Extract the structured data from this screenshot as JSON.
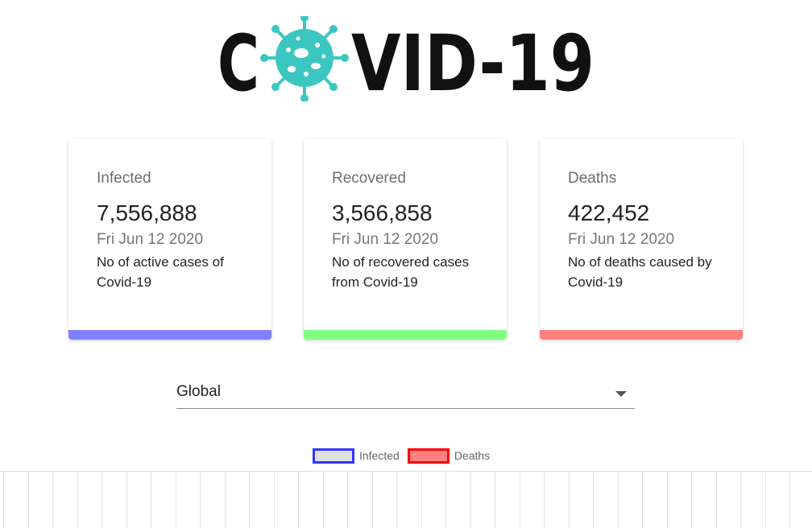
{
  "logo": {
    "text_left": "C",
    "text_right": "VID-19",
    "virus_color": "#3cc6c0"
  },
  "cards": {
    "infected": {
      "title": "Infected",
      "value": "7,556,888",
      "date": "Fri Jun 12 2020",
      "description": "No of active cases of Covid-19",
      "bar_color": "#8080ff"
    },
    "recovered": {
      "title": "Recovered",
      "value": "3,566,858",
      "date": "Fri Jun 12 2020",
      "description": "No of recovered cases from Covid-19",
      "bar_color": "#80ff80"
    },
    "deaths": {
      "title": "Deaths",
      "value": "422,452",
      "date": "Fri Jun 12 2020",
      "description": "No of deaths caused by Covid-19",
      "bar_color": "#ff8080"
    }
  },
  "country_select": {
    "selected": "Global"
  },
  "legend": [
    {
      "label": "Infected",
      "border": "#3333ff",
      "fill": "#e0e0e0"
    },
    {
      "label": "Deaths",
      "border": "#ff0000",
      "fill": "#ff8080"
    }
  ]
}
